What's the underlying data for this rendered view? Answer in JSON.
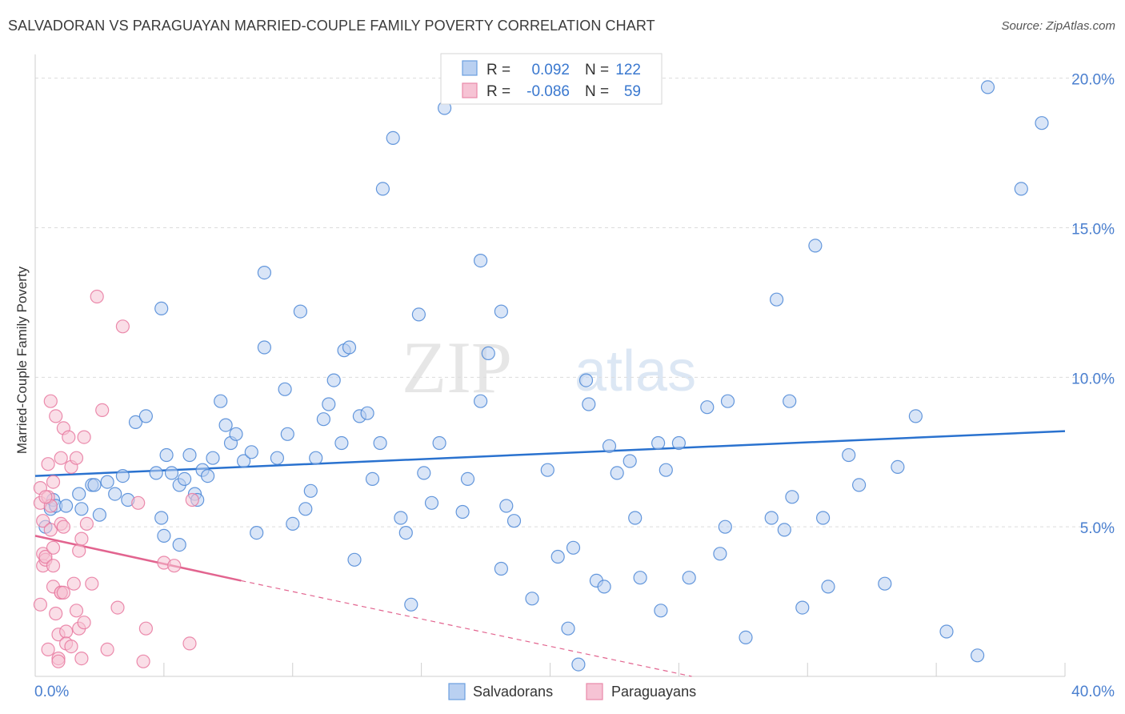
{
  "header": {
    "title": "SALVADORAN VS PARAGUAYAN MARRIED-COUPLE FAMILY POVERTY CORRELATION CHART",
    "source": "Source: ZipAtlas.com"
  },
  "watermark": {
    "zip": "ZIP",
    "atlas": "atlas"
  },
  "legend_top": {
    "rows": [
      {
        "r_label": "R =",
        "r_value": "0.092",
        "n_label": "N =",
        "n_value": "122",
        "color": "#6b9fe0"
      },
      {
        "r_label": "R =",
        "r_value": "-0.086",
        "n_label": "N =",
        "n_value": "59",
        "color": "#e989a9"
      }
    ]
  },
  "legend_bottom": {
    "items": [
      "Salvadorans",
      "Paraguayans"
    ]
  },
  "colors": {
    "blue": "#4a86d6",
    "blue_fill": "#b9d0f1",
    "pink": "#e8789f",
    "pink_fill": "#f6c3d4",
    "line_blue": "#2a72cf",
    "line_pink": "#e2648f",
    "axis_text": "#4a7fcf"
  },
  "chart_data": {
    "type": "scatter",
    "title": "SALVADORAN VS PARAGUAYAN MARRIED-COUPLE FAMILY POVERTY CORRELATION CHART",
    "xlabel": "",
    "ylabel": "Married-Couple Family Poverty",
    "xlim": [
      0,
      40
    ],
    "ylim": [
      0,
      20.5
    ],
    "x_tick_labels": [
      "0.0%",
      "40.0%"
    ],
    "y_ticks": [
      5,
      10,
      15,
      20
    ],
    "y_tick_labels": [
      "5.0%",
      "10.0%",
      "15.0%",
      "20.0%"
    ],
    "grid": true,
    "legend_position": "top-center",
    "series": [
      {
        "name": "Salvadorans",
        "R": 0.092,
        "N": 122,
        "trend": {
          "x": [
            0,
            40
          ],
          "y": [
            6.7,
            8.2
          ],
          "style": "solid"
        },
        "points": [
          [
            0.4,
            5.0
          ],
          [
            0.6,
            5.6
          ],
          [
            0.7,
            5.9
          ],
          [
            0.8,
            5.7
          ],
          [
            1.2,
            5.7
          ],
          [
            1.7,
            6.1
          ],
          [
            1.8,
            5.6
          ],
          [
            2.2,
            6.4
          ],
          [
            2.3,
            6.4
          ],
          [
            2.5,
            5.4
          ],
          [
            2.8,
            6.5
          ],
          [
            3.1,
            6.1
          ],
          [
            3.4,
            6.7
          ],
          [
            3.6,
            5.9
          ],
          [
            3.9,
            8.5
          ],
          [
            4.3,
            8.7
          ],
          [
            4.7,
            6.8
          ],
          [
            4.9,
            5.3
          ],
          [
            5.1,
            7.4
          ],
          [
            5.3,
            6.8
          ],
          [
            5.6,
            6.4
          ],
          [
            5.8,
            6.6
          ],
          [
            6.0,
            7.4
          ],
          [
            6.2,
            6.1
          ],
          [
            6.5,
            6.9
          ],
          [
            6.7,
            6.7
          ],
          [
            6.9,
            7.3
          ],
          [
            7.2,
            9.2
          ],
          [
            7.4,
            8.4
          ],
          [
            7.6,
            7.8
          ],
          [
            7.8,
            8.1
          ],
          [
            8.1,
            7.2
          ],
          [
            8.4,
            7.5
          ],
          [
            8.6,
            4.8
          ],
          [
            8.9,
            11.0
          ],
          [
            8.9,
            13.5
          ],
          [
            9.4,
            7.3
          ],
          [
            9.7,
            9.6
          ],
          [
            9.8,
            8.1
          ],
          [
            10.0,
            5.1
          ],
          [
            10.3,
            12.2
          ],
          [
            10.5,
            5.6
          ],
          [
            10.7,
            6.2
          ],
          [
            10.9,
            7.3
          ],
          [
            11.2,
            8.6
          ],
          [
            11.4,
            9.1
          ],
          [
            11.6,
            9.9
          ],
          [
            11.9,
            7.8
          ],
          [
            12.0,
            10.9
          ],
          [
            12.2,
            11.0
          ],
          [
            12.4,
            3.9
          ],
          [
            12.6,
            8.7
          ],
          [
            12.9,
            8.8
          ],
          [
            13.1,
            6.6
          ],
          [
            13.4,
            7.8
          ],
          [
            13.5,
            16.3
          ],
          [
            13.9,
            18.0
          ],
          [
            14.2,
            5.3
          ],
          [
            14.4,
            4.8
          ],
          [
            14.6,
            2.4
          ],
          [
            14.9,
            12.1
          ],
          [
            15.1,
            6.8
          ],
          [
            15.4,
            5.8
          ],
          [
            15.7,
            7.8
          ],
          [
            15.9,
            19.0
          ],
          [
            16.6,
            5.5
          ],
          [
            16.8,
            6.6
          ],
          [
            17.3,
            13.9
          ],
          [
            17.3,
            9.2
          ],
          [
            17.6,
            10.8
          ],
          [
            18.1,
            12.2
          ],
          [
            18.1,
            3.6
          ],
          [
            18.3,
            5.7
          ],
          [
            18.6,
            5.2
          ],
          [
            19.3,
            2.6
          ],
          [
            19.9,
            6.9
          ],
          [
            20.3,
            4.0
          ],
          [
            20.7,
            1.6
          ],
          [
            20.9,
            4.3
          ],
          [
            21.1,
            0.4
          ],
          [
            21.4,
            9.9
          ],
          [
            21.5,
            9.1
          ],
          [
            21.8,
            3.2
          ],
          [
            22.1,
            3.0
          ],
          [
            22.3,
            7.7
          ],
          [
            22.6,
            6.8
          ],
          [
            23.1,
            7.2
          ],
          [
            23.3,
            5.3
          ],
          [
            23.5,
            3.3
          ],
          [
            24.2,
            7.8
          ],
          [
            24.3,
            2.2
          ],
          [
            24.5,
            6.9
          ],
          [
            25.0,
            7.8
          ],
          [
            25.4,
            3.3
          ],
          [
            26.1,
            9.0
          ],
          [
            26.6,
            4.1
          ],
          [
            26.8,
            5.0
          ],
          [
            26.9,
            9.2
          ],
          [
            27.6,
            1.3
          ],
          [
            28.8,
            12.6
          ],
          [
            29.1,
            4.9
          ],
          [
            29.3,
            9.2
          ],
          [
            29.4,
            6.0
          ],
          [
            29.8,
            2.3
          ],
          [
            30.3,
            14.4
          ],
          [
            30.6,
            5.3
          ],
          [
            30.8,
            3.0
          ],
          [
            31.6,
            7.4
          ],
          [
            32.0,
            6.4
          ],
          [
            33.0,
            3.1
          ],
          [
            34.2,
            8.7
          ],
          [
            35.4,
            1.5
          ],
          [
            36.6,
            0.7
          ],
          [
            33.5,
            7.0
          ],
          [
            28.6,
            5.3
          ],
          [
            37.0,
            19.7
          ],
          [
            38.3,
            16.3
          ],
          [
            39.1,
            18.5
          ],
          [
            4.9,
            12.3
          ],
          [
            6.3,
            5.9
          ],
          [
            5.6,
            4.4
          ],
          [
            5.0,
            4.7
          ]
        ]
      },
      {
        "name": "Paraguayans",
        "R": -0.086,
        "N": 59,
        "trend": {
          "x": [
            0,
            8
          ],
          "y": [
            4.7,
            3.2
          ],
          "style": "solid",
          "extended_x": [
            8,
            25.5
          ],
          "extended_y": [
            3.2,
            0.0
          ],
          "extended_style": "dashed"
        },
        "points": [
          [
            0.2,
            6.3
          ],
          [
            0.2,
            5.8
          ],
          [
            0.3,
            5.2
          ],
          [
            0.3,
            4.1
          ],
          [
            0.3,
            3.7
          ],
          [
            0.4,
            3.9
          ],
          [
            0.4,
            4.0
          ],
          [
            0.5,
            7.1
          ],
          [
            0.5,
            6.0
          ],
          [
            0.6,
            9.2
          ],
          [
            0.6,
            5.7
          ],
          [
            0.6,
            4.9
          ],
          [
            0.7,
            6.5
          ],
          [
            0.7,
            4.3
          ],
          [
            0.7,
            3.7
          ],
          [
            0.7,
            3.0
          ],
          [
            0.8,
            8.7
          ],
          [
            0.8,
            2.1
          ],
          [
            0.9,
            1.4
          ],
          [
            0.9,
            0.6
          ],
          [
            0.9,
            0.5
          ],
          [
            1.0,
            7.3
          ],
          [
            1.0,
            5.1
          ],
          [
            1.0,
            2.8
          ],
          [
            1.0,
            2.8
          ],
          [
            1.1,
            8.3
          ],
          [
            1.1,
            5.0
          ],
          [
            1.2,
            1.5
          ],
          [
            1.2,
            1.1
          ],
          [
            1.3,
            8.0
          ],
          [
            1.4,
            7.0
          ],
          [
            1.4,
            1.0
          ],
          [
            1.5,
            3.1
          ],
          [
            1.6,
            7.3
          ],
          [
            1.6,
            2.2
          ],
          [
            1.7,
            4.2
          ],
          [
            1.7,
            1.6
          ],
          [
            1.8,
            0.6
          ],
          [
            1.8,
            4.6
          ],
          [
            1.9,
            1.8
          ],
          [
            1.9,
            8.0
          ],
          [
            2.0,
            5.1
          ],
          [
            2.2,
            3.1
          ],
          [
            2.4,
            12.7
          ],
          [
            2.6,
            8.9
          ],
          [
            2.8,
            0.9
          ],
          [
            3.2,
            2.3
          ],
          [
            3.4,
            11.7
          ],
          [
            4.2,
            0.5
          ],
          [
            4.3,
            1.6
          ],
          [
            5.0,
            3.8
          ],
          [
            5.4,
            3.7
          ],
          [
            6.0,
            1.1
          ],
          [
            6.1,
            5.9
          ],
          [
            4.0,
            5.8
          ],
          [
            0.2,
            2.4
          ],
          [
            0.4,
            6.0
          ],
          [
            0.5,
            0.9
          ],
          [
            1.1,
            2.8
          ]
        ]
      }
    ]
  }
}
